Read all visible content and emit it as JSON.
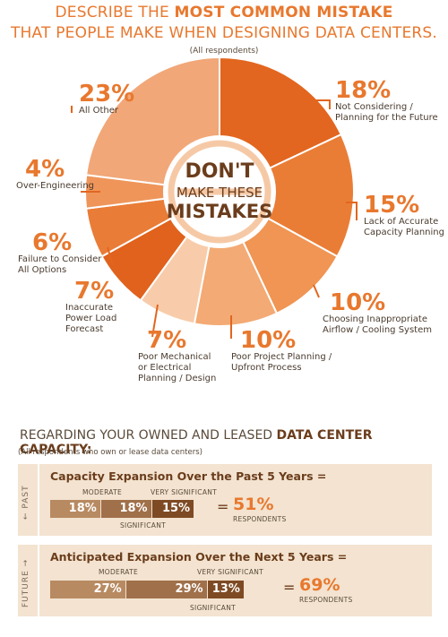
{
  "header": {
    "line1_pre": "DESCRIBE THE ",
    "line1_bold": "MOST COMMON MISTAKE",
    "line2": "THAT PEOPLE MAKE WHEN DESIGNING DATA CENTERS.",
    "subtitle": "(All respondents)"
  },
  "badge": {
    "line1": "DON'T",
    "line2": "MAKE THESE",
    "line3": "MISTAKES"
  },
  "chart_data": [
    {
      "type": "pie",
      "donut": true,
      "slices": [
        {
          "label": "Not Considering / Planning for the Future",
          "value": 18,
          "pct": "18%",
          "label_lines": [
            "Not Considering /",
            "Planning for the Future"
          ],
          "color": "#e2661f"
        },
        {
          "label": "Lack of Accurate Capacity Planning",
          "value": 15,
          "pct": "15%",
          "label_lines": [
            "Lack of Accurate",
            "Capacity Planning"
          ],
          "color": "#ea7d36"
        },
        {
          "label": "Choosing Inappropriate Airflow / Cooling System",
          "value": 10,
          "pct": "10%",
          "label_lines": [
            "Choosing Inappropriate",
            "Airflow / Cooling System"
          ],
          "color": "#f09553"
        },
        {
          "label": "Poor Project Planning / Upfront Process",
          "value": 10,
          "pct": "10%",
          "label_lines": [
            "Poor Project Planning /",
            "Upfront Process"
          ],
          "color": "#f3aa74"
        },
        {
          "label": "Poor Mechanical or Electrical Planning / Design",
          "value": 7,
          "pct": "7%",
          "label_lines": [
            "Poor Mechanical",
            "or Electrical",
            "Planning / Design"
          ],
          "color": "#f8ccaa"
        },
        {
          "label": "Inaccurate Power Load Forecast",
          "value": 7,
          "pct": "7%",
          "label_lines": [
            "Inaccurate",
            "Power Load",
            "Forecast"
          ],
          "color": "#e0621c"
        },
        {
          "label": "Failure to Consider All Options",
          "value": 6,
          "pct": "6%",
          "label_lines": [
            "Failure to Consider",
            "All Options"
          ],
          "color": "#e97c37"
        },
        {
          "label": "Over-Engineering",
          "value": 4,
          "pct": "4%",
          "label_lines": [
            "Over-Engineering"
          ],
          "color": "#ef955a"
        },
        {
          "label": "All Other",
          "value": 23,
          "pct": "23%",
          "label_lines": [
            "All Other"
          ],
          "color": "#f1a778"
        }
      ]
    },
    {
      "type": "bar",
      "stacked": true,
      "title": "Capacity Expansion Over the Past 5 Years =",
      "side_label": "← PAST",
      "segments": [
        {
          "name": "MODERATE",
          "value": 18,
          "label": "18%"
        },
        {
          "name": "SIGNIFICANT",
          "value": 18,
          "label": "18%"
        },
        {
          "name": "VERY SIGNIFICANT",
          "value": 15,
          "label": "15%"
        }
      ],
      "total": "51%",
      "total_caption": "RESPONDENTS"
    },
    {
      "type": "bar",
      "stacked": true,
      "title": "Anticipated Expansion Over the Next 5 Years =",
      "side_label": "FUTURE →",
      "segments": [
        {
          "name": "MODERATE",
          "value": 27,
          "label": "27%"
        },
        {
          "name": "SIGNIFICANT",
          "value": 29,
          "label": "29%"
        },
        {
          "name": "VERY SIGNIFICANT",
          "value": 13,
          "label": "13%"
        }
      ],
      "total": "69%",
      "total_caption": "RESPONDENTS"
    }
  ],
  "section2": {
    "title_pre": "REGARDING YOUR OWNED AND LEASED ",
    "title_bold": "DATA CENTER CAPACITY:",
    "subtitle": "(All respondents who own or lease data centers)"
  },
  "colors": {
    "accent": "#e8782e",
    "dark_brown": "#6b3d1c",
    "panel_bg": "#f3e3d0"
  }
}
